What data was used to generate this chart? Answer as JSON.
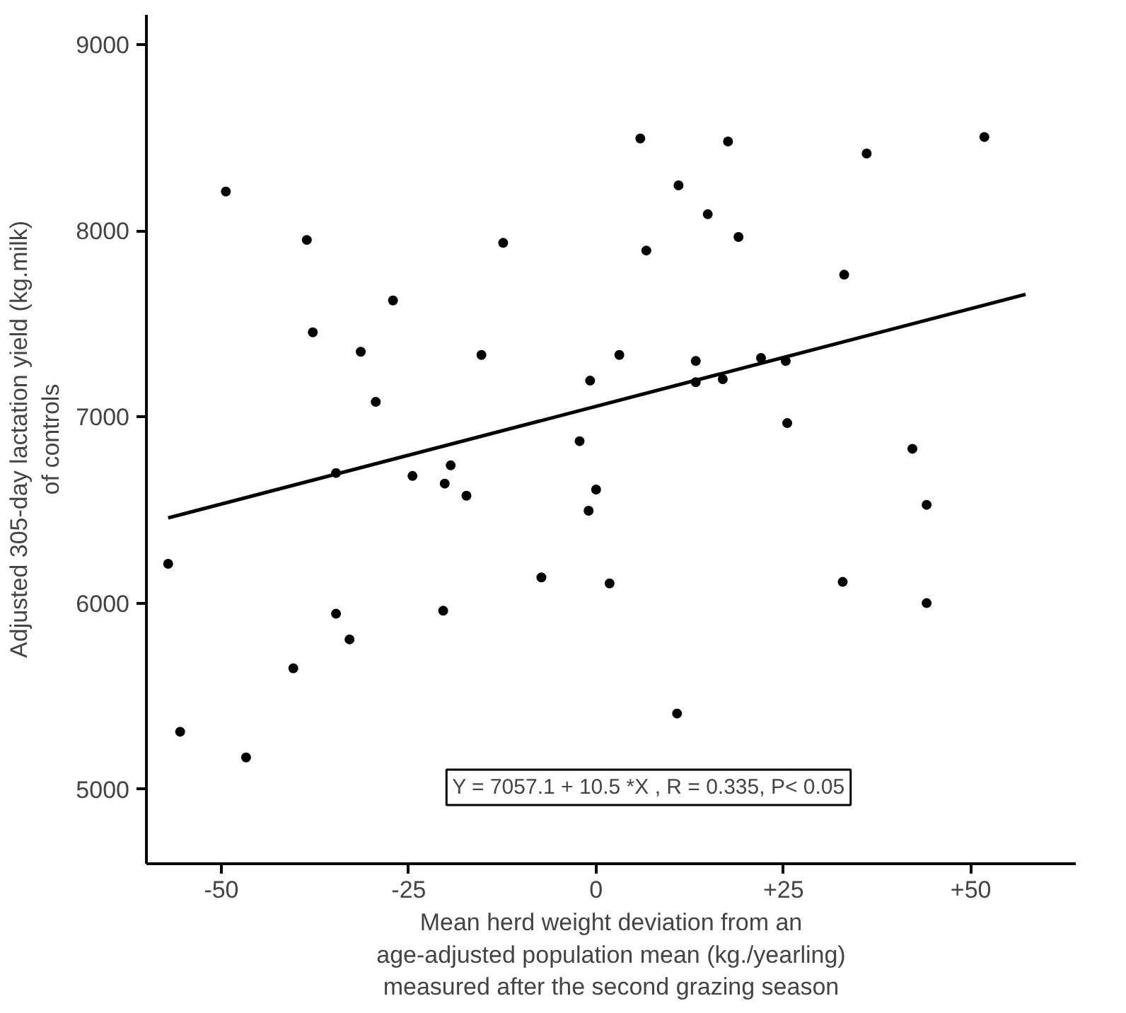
{
  "chart_data": {
    "type": "scatter",
    "xlabel": "Mean herd weight deviation from an\nage-adjusted population mean (kg./yearling)\nmeasured after the second grazing season",
    "ylabel": "Adjusted 305-day lactation yield (kg.milk)\nof controls",
    "xlim": [
      -60,
      64
    ],
    "ylim": [
      4600,
      9160
    ],
    "xticks": [
      -50,
      -25,
      0,
      {
        "value": 25,
        "label": "+25"
      },
      {
        "value": 50,
        "label": "+50"
      }
    ],
    "yticks": [
      5000,
      6000,
      7000,
      8000,
      9000
    ],
    "grid": false,
    "marker": "circle",
    "annotations": [
      "Y = 7057.1 + 10.5 *X , R = 0.335, P< 0.05"
    ],
    "series": [
      {
        "color": "#000000",
        "x": [
          -49.4,
          -38.6,
          -37.8,
          -27.1,
          -31.4,
          -29.4,
          -12.4,
          -15.3,
          -0.8,
          -2.2,
          3.1,
          5.9,
          17.6,
          11.0,
          14.9,
          6.7,
          19.0,
          36.1,
          51.8,
          33.1,
          13.3,
          13.3,
          22.0,
          16.9,
          25.3,
          25.5,
          42.2,
          -57.1,
          -55.5,
          -46.7,
          -34.7,
          -24.5,
          -19.4,
          -20.2,
          -17.3,
          0.0,
          -1.0,
          -7.3,
          1.8,
          -34.7,
          -32.9,
          -40.4,
          -20.4,
          44.1,
          32.9,
          44.1,
          10.8
        ],
        "values": [
          8211,
          7951,
          7455,
          7626,
          7350,
          7081,
          7935,
          7333,
          7195,
          6870,
          7333,
          8496,
          8480,
          8244,
          8089,
          7894,
          7967,
          8415,
          8504,
          7764,
          7301,
          7187,
          7317,
          7203,
          7301,
          6967,
          6829,
          6211,
          5309,
          5171,
          6699,
          6683,
          6740,
          6642,
          6577,
          6610,
          6496,
          6138,
          6106,
          5943,
          5805,
          5650,
          5959,
          6528,
          6114,
          6000,
          5407
        ]
      },
      {
        "type": "line",
        "color": "#000000",
        "x": [
          -57.1,
          57.3
        ],
        "values": [
          6457.5,
          7658.8
        ],
        "marker": "none"
      }
    ]
  }
}
